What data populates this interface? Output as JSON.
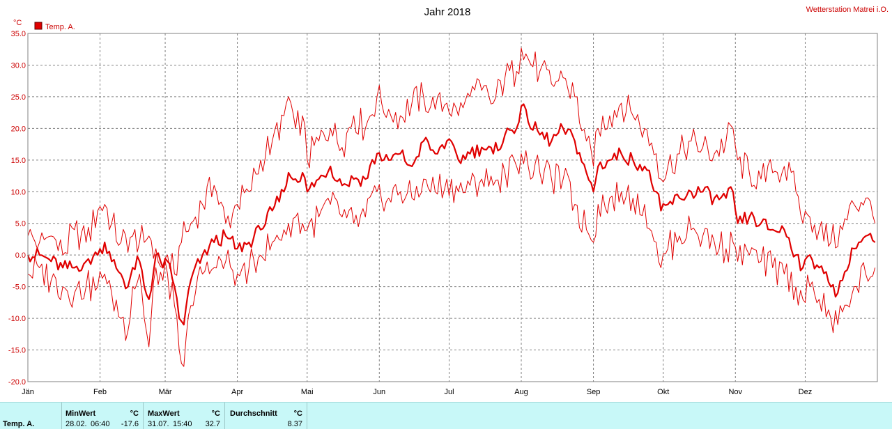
{
  "title": "Jahr 2018",
  "station": "Wetterstation Matrei i.O.",
  "colors": {
    "series": "#e00000",
    "axis_text": "#cc0000",
    "grid": "#808080",
    "stats_bg": "#c8f8f8"
  },
  "chart_data": {
    "type": "line",
    "title": "Jahr 2018",
    "ylabel": "°C",
    "ylim": [
      -20,
      35
    ],
    "yticks": [
      "35.0",
      "30.0",
      "25.0",
      "20.0",
      "15.0",
      "10.0",
      "5.0",
      "0.0",
      "-5.0",
      "-10.0",
      "-15.0",
      "-20.0"
    ],
    "xlim_days": [
      0,
      365
    ],
    "months": [
      "Jän",
      "Feb",
      "Mär",
      "Apr",
      "Mai",
      "Jun",
      "Jul",
      "Aug",
      "Sep",
      "Okt",
      "Nov",
      "Dez"
    ],
    "grid": true,
    "legend": {
      "position": "top-left",
      "entries": [
        "Temp. A."
      ]
    },
    "series": [
      {
        "name": "Temp. A.",
        "role": "max",
        "anchors": [
          [
            0,
            3
          ],
          [
            5,
            2
          ],
          [
            10,
            3
          ],
          [
            15,
            0
          ],
          [
            20,
            4
          ],
          [
            25,
            2
          ],
          [
            30,
            7
          ],
          [
            33,
            8
          ],
          [
            36,
            5
          ],
          [
            40,
            2
          ],
          [
            45,
            3
          ],
          [
            50,
            2
          ],
          [
            52,
            3
          ],
          [
            55,
            1
          ],
          [
            58,
            -2
          ],
          [
            60,
            0
          ],
          [
            63,
            -3
          ],
          [
            66,
            2
          ],
          [
            70,
            5
          ],
          [
            75,
            8
          ],
          [
            80,
            11
          ],
          [
            85,
            5
          ],
          [
            90,
            8
          ],
          [
            95,
            10
          ],
          [
            100,
            15
          ],
          [
            105,
            18
          ],
          [
            110,
            22
          ],
          [
            112,
            25
          ],
          [
            115,
            20
          ],
          [
            118,
            22
          ],
          [
            120,
            15
          ],
          [
            125,
            18
          ],
          [
            130,
            20
          ],
          [
            135,
            17
          ],
          [
            140,
            22
          ],
          [
            145,
            20
          ],
          [
            150,
            25
          ],
          [
            155,
            23
          ],
          [
            160,
            22
          ],
          [
            165,
            24
          ],
          [
            170,
            25
          ],
          [
            175,
            23
          ],
          [
            180,
            24
          ],
          [
            185,
            22
          ],
          [
            190,
            25
          ],
          [
            195,
            26
          ],
          [
            200,
            24
          ],
          [
            205,
            28
          ],
          [
            210,
            29
          ],
          [
            212,
            32.7
          ],
          [
            215,
            31
          ],
          [
            220,
            29
          ],
          [
            225,
            27
          ],
          [
            230,
            28
          ],
          [
            235,
            25
          ],
          [
            240,
            18
          ],
          [
            243,
            14
          ],
          [
            245,
            20
          ],
          [
            250,
            22
          ],
          [
            255,
            24
          ],
          [
            260,
            22
          ],
          [
            265,
            20
          ],
          [
            270,
            16
          ],
          [
            272,
            12
          ],
          [
            275,
            14
          ],
          [
            280,
            16
          ],
          [
            285,
            18
          ],
          [
            290,
            17
          ],
          [
            295,
            16
          ],
          [
            300,
            18
          ],
          [
            303,
            20
          ],
          [
            305,
            15
          ],
          [
            310,
            13
          ],
          [
            315,
            12
          ],
          [
            320,
            13
          ],
          [
            325,
            14
          ],
          [
            330,
            10
          ],
          [
            333,
            5
          ],
          [
            336,
            6
          ],
          [
            340,
            4
          ],
          [
            345,
            2
          ],
          [
            350,
            4
          ],
          [
            355,
            8
          ],
          [
            360,
            9
          ],
          [
            364,
            5
          ]
        ],
        "points_note": "daily maxima"
      },
      {
        "name": "Temp. A.",
        "role": "mean",
        "anchors": [
          [
            0,
            0
          ],
          [
            5,
            0
          ],
          [
            10,
            -1
          ],
          [
            15,
            -2
          ],
          [
            20,
            -2
          ],
          [
            25,
            -1
          ],
          [
            30,
            0
          ],
          [
            33,
            2
          ],
          [
            36,
            -1
          ],
          [
            40,
            -3
          ],
          [
            43,
            -5
          ],
          [
            45,
            -2
          ],
          [
            48,
            -1
          ],
          [
            50,
            -5
          ],
          [
            52,
            -7
          ],
          [
            55,
            0
          ],
          [
            58,
            -2
          ],
          [
            60,
            -1
          ],
          [
            63,
            -5
          ],
          [
            65,
            -10
          ],
          [
            67,
            -11
          ],
          [
            70,
            -4
          ],
          [
            75,
            0
          ],
          [
            80,
            2
          ],
          [
            85,
            3
          ],
          [
            90,
            1
          ],
          [
            95,
            2
          ],
          [
            100,
            4
          ],
          [
            105,
            7
          ],
          [
            110,
            10
          ],
          [
            112,
            13
          ],
          [
            115,
            12
          ],
          [
            118,
            13
          ],
          [
            120,
            10
          ],
          [
            125,
            12
          ],
          [
            130,
            14
          ],
          [
            135,
            11
          ],
          [
            140,
            12
          ],
          [
            145,
            12
          ],
          [
            150,
            16
          ],
          [
            155,
            15
          ],
          [
            160,
            16
          ],
          [
            165,
            14
          ],
          [
            170,
            18
          ],
          [
            175,
            16
          ],
          [
            180,
            18
          ],
          [
            185,
            15
          ],
          [
            190,
            16
          ],
          [
            195,
            17
          ],
          [
            200,
            16
          ],
          [
            205,
            19
          ],
          [
            210,
            20
          ],
          [
            212,
            23.5
          ],
          [
            215,
            21
          ],
          [
            220,
            19
          ],
          [
            225,
            18
          ],
          [
            230,
            20
          ],
          [
            235,
            18
          ],
          [
            240,
            13
          ],
          [
            243,
            10
          ],
          [
            245,
            14
          ],
          [
            250,
            15
          ],
          [
            255,
            16
          ],
          [
            260,
            15
          ],
          [
            265,
            14
          ],
          [
            270,
            10
          ],
          [
            272,
            7
          ],
          [
            275,
            8
          ],
          [
            280,
            9
          ],
          [
            285,
            10
          ],
          [
            290,
            10
          ],
          [
            295,
            9
          ],
          [
            300,
            9
          ],
          [
            303,
            10
          ],
          [
            305,
            5
          ],
          [
            310,
            6
          ],
          [
            315,
            5
          ],
          [
            320,
            4
          ],
          [
            325,
            4
          ],
          [
            330,
            0
          ],
          [
            333,
            -2
          ],
          [
            336,
            0
          ],
          [
            340,
            -2
          ],
          [
            345,
            -5
          ],
          [
            348,
            -6
          ],
          [
            350,
            -4
          ],
          [
            355,
            1
          ],
          [
            360,
            3
          ],
          [
            364,
            2
          ]
        ]
      },
      {
        "name": "Temp. A.",
        "role": "min",
        "anchors": [
          [
            0,
            -3
          ],
          [
            5,
            -2
          ],
          [
            10,
            -4
          ],
          [
            15,
            -5
          ],
          [
            20,
            -6
          ],
          [
            25,
            -5
          ],
          [
            30,
            -5
          ],
          [
            33,
            -3
          ],
          [
            36,
            -6
          ],
          [
            40,
            -10
          ],
          [
            43,
            -12
          ],
          [
            45,
            -5
          ],
          [
            48,
            -3
          ],
          [
            50,
            -10
          ],
          [
            52,
            -14.5
          ],
          [
            55,
            -2
          ],
          [
            58,
            -4
          ],
          [
            60,
            -3
          ],
          [
            63,
            -8
          ],
          [
            65,
            -15
          ],
          [
            67,
            -17.6
          ],
          [
            70,
            -8
          ],
          [
            75,
            -3
          ],
          [
            80,
            -2
          ],
          [
            85,
            -1
          ],
          [
            90,
            -3
          ],
          [
            95,
            -2
          ],
          [
            100,
            0
          ],
          [
            105,
            2
          ],
          [
            110,
            4
          ],
          [
            112,
            5
          ],
          [
            115,
            6
          ],
          [
            118,
            5
          ],
          [
            120,
            4
          ],
          [
            125,
            6
          ],
          [
            130,
            8
          ],
          [
            135,
            6
          ],
          [
            140,
            5
          ],
          [
            145,
            6
          ],
          [
            150,
            10
          ],
          [
            155,
            9
          ],
          [
            160,
            10
          ],
          [
            165,
            9
          ],
          [
            170,
            12
          ],
          [
            175,
            10
          ],
          [
            180,
            12
          ],
          [
            185,
            10
          ],
          [
            190,
            11
          ],
          [
            195,
            12
          ],
          [
            200,
            11
          ],
          [
            205,
            13
          ],
          [
            210,
            14
          ],
          [
            212,
            16
          ],
          [
            215,
            14
          ],
          [
            220,
            13
          ],
          [
            225,
            12
          ],
          [
            230,
            12
          ],
          [
            235,
            8
          ],
          [
            240,
            4
          ],
          [
            243,
            2
          ],
          [
            245,
            8
          ],
          [
            250,
            9
          ],
          [
            255,
            10
          ],
          [
            260,
            9
          ],
          [
            265,
            8
          ],
          [
            270,
            2
          ],
          [
            272,
            -2
          ],
          [
            275,
            1
          ],
          [
            280,
            3
          ],
          [
            285,
            4
          ],
          [
            290,
            3
          ],
          [
            295,
            2
          ],
          [
            300,
            1
          ],
          [
            303,
            2
          ],
          [
            305,
            -1
          ],
          [
            310,
            0
          ],
          [
            315,
            -1
          ],
          [
            320,
            -2
          ],
          [
            325,
            -3
          ],
          [
            330,
            -5
          ],
          [
            333,
            -7
          ],
          [
            336,
            -5
          ],
          [
            340,
            -7
          ],
          [
            345,
            -10
          ],
          [
            348,
            -11
          ],
          [
            350,
            -9
          ],
          [
            355,
            -5
          ],
          [
            360,
            -3
          ],
          [
            364,
            -2
          ]
        ]
      }
    ]
  },
  "stats": {
    "row_label": "Temp. A.",
    "min": {
      "label": "MinWert",
      "unit": "°C",
      "date": "28.02.",
      "time": "06:40",
      "value": "-17.6"
    },
    "max": {
      "label": "MaxWert",
      "unit": "°C",
      "date": "31.07.",
      "time": "15:40",
      "value": "32.7"
    },
    "avg": {
      "label": "Durchschnitt",
      "unit": "°C",
      "value": "8.37"
    }
  }
}
